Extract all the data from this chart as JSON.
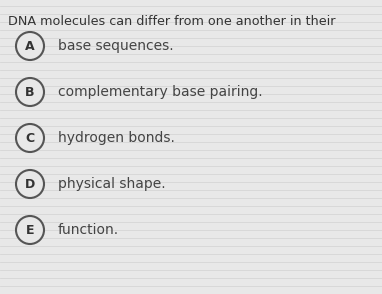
{
  "title": "DNA molecules can differ from one another in their",
  "options": [
    {
      "label": "A",
      "text": "base sequences."
    },
    {
      "label": "B",
      "text": "complementary base pairing."
    },
    {
      "label": "C",
      "text": "hydrogen bonds."
    },
    {
      "label": "D",
      "text": "physical shape."
    },
    {
      "label": "E",
      "text": "function."
    }
  ],
  "background_color": "#e8e8e8",
  "line_color": "#c8c8c8",
  "title_color": "#333333",
  "option_label_color": "#333333",
  "option_text_color": "#444444",
  "circle_edge_color": "#555555",
  "title_fontsize": 9.2,
  "option_fontsize": 10.0,
  "label_fontsize": 9.0,
  "fig_width": 3.82,
  "fig_height": 2.94,
  "dpi": 100
}
